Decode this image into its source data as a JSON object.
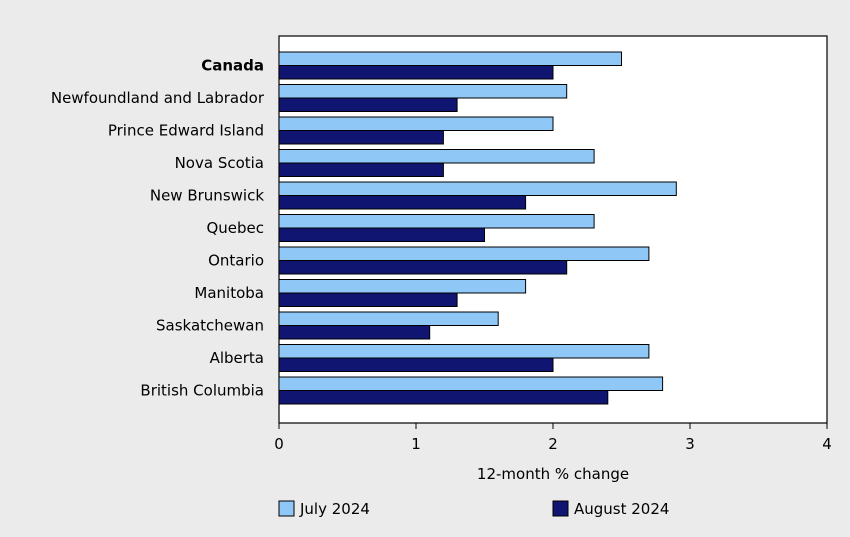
{
  "chart_data": {
    "type": "bar",
    "orientation": "horizontal",
    "categories": [
      "Canada",
      "Newfoundland and Labrador",
      "Prince Edward Island",
      "Nova Scotia",
      "New Brunswick",
      "Quebec",
      "Ontario",
      "Manitoba",
      "Saskatchewan",
      "Alberta",
      "British Columbia"
    ],
    "bold_categories": [
      "Canada"
    ],
    "series": [
      {
        "name": "July 2024",
        "color": "#8fc8f7",
        "values": [
          2.5,
          2.1,
          2.0,
          2.3,
          2.9,
          2.3,
          2.7,
          1.8,
          1.6,
          2.7,
          2.8
        ]
      },
      {
        "name": "August 2024",
        "color": "#0f1570",
        "values": [
          2.0,
          1.3,
          1.2,
          1.2,
          1.8,
          1.5,
          2.1,
          1.3,
          1.1,
          2.0,
          2.4
        ]
      }
    ],
    "xlabel": "12-month % change",
    "ylabel": "",
    "title": "",
    "xlim": [
      0,
      4
    ],
    "xticks": [
      "0",
      "1",
      "2",
      "3",
      "4"
    ],
    "grid": false,
    "legend_position": "bottom"
  }
}
